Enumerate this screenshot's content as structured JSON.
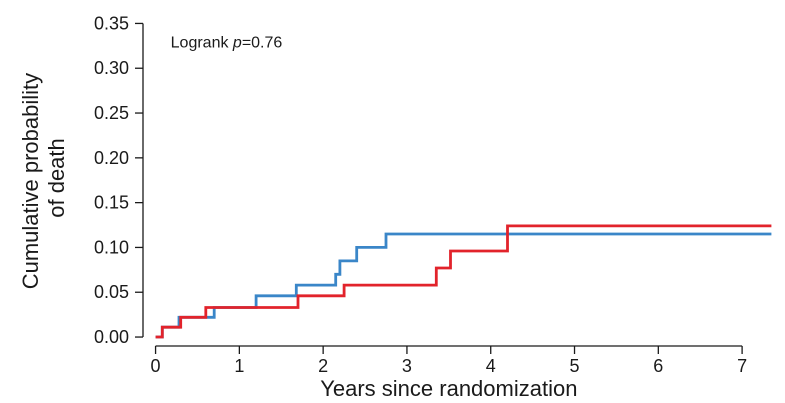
{
  "chart_data": {
    "type": "line",
    "step": true,
    "xlabel": "Years since randomization",
    "ylabel": "Cumulative probability of death",
    "ylabel_lines": [
      "Cumulative probability",
      "of death"
    ],
    "xlim": [
      -0.15,
      7.5
    ],
    "ylim": [
      -0.01,
      0.365
    ],
    "xticks": [
      0,
      1,
      2,
      3,
      4,
      5,
      6,
      7
    ],
    "xtick_labels": [
      "0",
      "1",
      "2",
      "3",
      "4",
      "5",
      "6",
      "7"
    ],
    "yticks": [
      0.0,
      0.05,
      0.1,
      0.15,
      0.2,
      0.25,
      0.3,
      0.35
    ],
    "ytick_labels": [
      "0.00",
      "0.05",
      "0.10",
      "0.15",
      "0.20",
      "0.25",
      "0.30",
      "0.35"
    ],
    "grid": false,
    "annotation": {
      "prefix": "Logrank ",
      "stat": "p",
      "value": "=0.76",
      "x": 0.18,
      "y": 0.33
    },
    "series": [
      {
        "color": "#3a86c8",
        "x": [
          0.0,
          0.08,
          0.28,
          0.7,
          1.2,
          1.68,
          2.15,
          2.2,
          2.4,
          2.75,
          7.35
        ],
        "y": [
          0.0,
          0.011,
          0.022,
          0.033,
          0.046,
          0.058,
          0.07,
          0.085,
          0.1,
          0.115,
          0.115
        ]
      },
      {
        "color": "#e2232b",
        "x": [
          0.0,
          0.08,
          0.3,
          0.6,
          1.7,
          2.25,
          3.35,
          3.52,
          4.2,
          7.35
        ],
        "y": [
          0.0,
          0.011,
          0.022,
          0.033,
          0.046,
          0.058,
          0.077,
          0.096,
          0.124,
          0.124
        ]
      }
    ]
  }
}
